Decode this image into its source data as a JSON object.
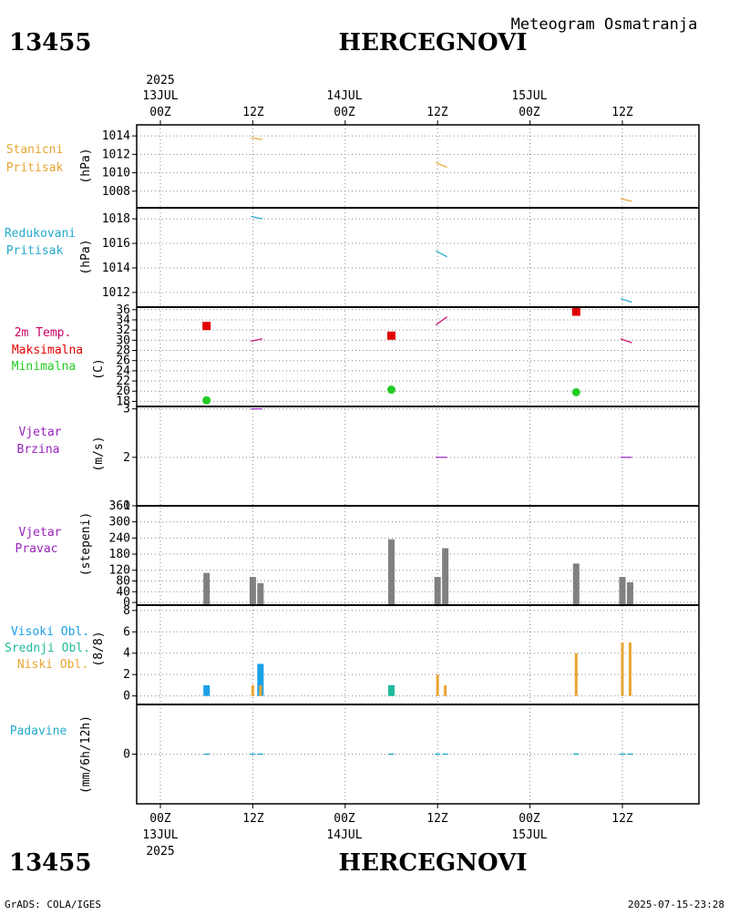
{
  "header": {
    "station_id": "13455",
    "station_name": "HERCEGNOVI",
    "title": "Meteogram Osmatranja",
    "top_year": "2025",
    "top_dates": [
      "13JUL",
      "14JUL",
      "15JUL"
    ],
    "time_ticks": [
      "00Z",
      "12Z",
      "00Z",
      "12Z",
      "00Z",
      "12Z"
    ]
  },
  "footer": {
    "station_id": "13455",
    "station_name": "HERCEGNOVI",
    "bottom_dates": [
      "13JUL",
      "14JUL",
      "15JUL"
    ],
    "bottom_year": "2025",
    "credit": "GrADS: COLA/IGES",
    "timestamp": "2025-07-15-23:28"
  },
  "colors": {
    "orange": "#e8a533",
    "cyan": "#22aacc",
    "red": "#e00000",
    "green": "#22cc22",
    "purple": "#9922bb",
    "magenta": "#cc0066",
    "gray": "#808080",
    "blue": "#1aa0e6",
    "teal": "#22bb99"
  },
  "panels": {
    "station_pressure": {
      "labels": [
        "Stanicni",
        "Pritisak"
      ],
      "unit": "(hPa)"
    },
    "reduced_pressure": {
      "labels": [
        "Redukovani",
        "Pritisak"
      ],
      "unit": "(hPa)"
    },
    "temperature": {
      "labels": [
        "2m Temp.",
        "Maksimalna",
        "Minimalna"
      ],
      "unit": "(C)"
    },
    "wind_speed": {
      "labels": [
        "Vjetar",
        "Brzina"
      ],
      "unit": "(m/s)"
    },
    "wind_dir": {
      "labels": [
        "Vjetar",
        "Pravac"
      ],
      "unit": "(stepeni)"
    },
    "clouds": {
      "labels": [
        "Visoki Obl.",
        "Srednji Obl.",
        "Niski Obl."
      ],
      "unit": "(8/8)"
    },
    "precip": {
      "labels": [
        "Padavine"
      ],
      "unit": "(mm/6h/12h)"
    }
  },
  "chart_data": [
    {
      "type": "line",
      "title": "Stanicni Pritisak",
      "ylabel": "(hPa)",
      "ylim": [
        1006.2,
        1015.2
      ],
      "yticks": [
        1008,
        1010,
        1012,
        1014
      ],
      "x_unit": "hours since 13JUL 00Z",
      "segments": [
        {
          "x": [
            12,
            13
          ],
          "y": [
            1013.8,
            1013.6
          ]
        },
        {
          "x": [
            36,
            37
          ],
          "y": [
            1011.1,
            1010.6
          ]
        },
        {
          "x": [
            60,
            61
          ],
          "y": [
            1007.2,
            1006.9
          ]
        }
      ]
    },
    {
      "type": "line",
      "title": "Redukovani Pritisak",
      "ylabel": "(hPa)",
      "ylim": [
        1010.8,
        1018.9
      ],
      "yticks": [
        1012,
        1014,
        1016,
        1018
      ],
      "x_unit": "hours since 13JUL 00Z",
      "segments": [
        {
          "x": [
            12,
            13
          ],
          "y": [
            1018.2,
            1018.0
          ]
        },
        {
          "x": [
            36,
            37
          ],
          "y": [
            1015.4,
            1014.9
          ]
        },
        {
          "x": [
            60,
            61
          ],
          "y": [
            1011.5,
            1011.2
          ]
        }
      ]
    },
    {
      "type": "scatter",
      "title": "2m Temp. / Maksimalna / Minimalna",
      "ylabel": "(C)",
      "ylim": [
        17,
        36.5
      ],
      "yticks": [
        18,
        20,
        22,
        24,
        26,
        28,
        30,
        32,
        34,
        36
      ],
      "temp_segments": [
        {
          "x": [
            12,
            13
          ],
          "y": [
            29.8,
            30.3
          ]
        },
        {
          "x": [
            36,
            37
          ],
          "y": [
            33.0,
            34.6
          ]
        },
        {
          "x": [
            60,
            61
          ],
          "y": [
            30.3,
            29.5
          ]
        }
      ],
      "max_points": [
        {
          "x": 6,
          "y": 32.8
        },
        {
          "x": 30,
          "y": 30.9
        },
        {
          "x": 54,
          "y": 35.6
        }
      ],
      "min_points": [
        {
          "x": 6,
          "y": 18.2
        },
        {
          "x": 30,
          "y": 20.3
        },
        {
          "x": 54,
          "y": 19.8
        }
      ]
    },
    {
      "type": "line",
      "title": "Vjetar Brzina",
      "ylabel": "(m/s)",
      "ylim": [
        1,
        3.05
      ],
      "yticks": [
        1,
        2,
        3
      ],
      "segments": [
        {
          "x": [
            12,
            13
          ],
          "y": [
            3,
            3
          ]
        },
        {
          "x": [
            36,
            37
          ],
          "y": [
            2,
            2
          ]
        },
        {
          "x": [
            60,
            61
          ],
          "y": [
            2,
            2
          ]
        }
      ]
    },
    {
      "type": "bar",
      "title": "Vjetar Pravac",
      "ylabel": "(stepeni)",
      "ylim": [
        -10,
        360
      ],
      "yticks": [
        0,
        40,
        80,
        120,
        180,
        240,
        300,
        360
      ],
      "bars": [
        {
          "x": 6,
          "value": 110
        },
        {
          "x": 12,
          "value": 95
        },
        {
          "x": 13,
          "value": 72
        },
        {
          "x": 30,
          "value": 235
        },
        {
          "x": 36,
          "value": 95
        },
        {
          "x": 37,
          "value": 202
        },
        {
          "x": 54,
          "value": 145
        },
        {
          "x": 60,
          "value": 95
        },
        {
          "x": 61,
          "value": 75
        }
      ]
    },
    {
      "type": "bar",
      "title": "Visoki Obl. / Srednji Obl. / Niski Obl.",
      "ylabel": "(8/8)",
      "ylim": [
        -0.8,
        8.5
      ],
      "yticks": [
        0,
        2,
        4,
        6,
        8
      ],
      "series": [
        {
          "name": "Visoki Obl.",
          "color": "#1aa0e6",
          "bars": [
            {
              "x": 6,
              "value": 1
            },
            {
              "x": 13,
              "value": 3
            },
            {
              "x": 30,
              "value": 1
            }
          ]
        },
        {
          "name": "Srednji Obl.",
          "color": "#22bb99",
          "bars": [
            {
              "x": 30,
              "value": 1
            }
          ]
        },
        {
          "name": "Niski Obl.",
          "color": "#e8a533",
          "bars": [
            {
              "x": 12,
              "value": 1
            },
            {
              "x": 13,
              "value": 1
            },
            {
              "x": 36,
              "value": 2
            },
            {
              "x": 37,
              "value": 1
            },
            {
              "x": 54,
              "value": 4
            },
            {
              "x": 60,
              "value": 5
            },
            {
              "x": 61,
              "value": 5
            }
          ]
        }
      ]
    },
    {
      "type": "bar",
      "title": "Padavine",
      "ylabel": "(mm/6h/12h)",
      "ylim": [
        -5,
        5
      ],
      "yticks": [
        0
      ],
      "bars": [
        {
          "x": 6,
          "value": 0
        },
        {
          "x": 12,
          "value": 0
        },
        {
          "x": 13,
          "value": 0
        },
        {
          "x": 30,
          "value": 0
        },
        {
          "x": 36,
          "value": 0
        },
        {
          "x": 37,
          "value": 0
        },
        {
          "x": 54,
          "value": 0
        },
        {
          "x": 60,
          "value": 0
        },
        {
          "x": 61,
          "value": 0
        }
      ]
    }
  ]
}
